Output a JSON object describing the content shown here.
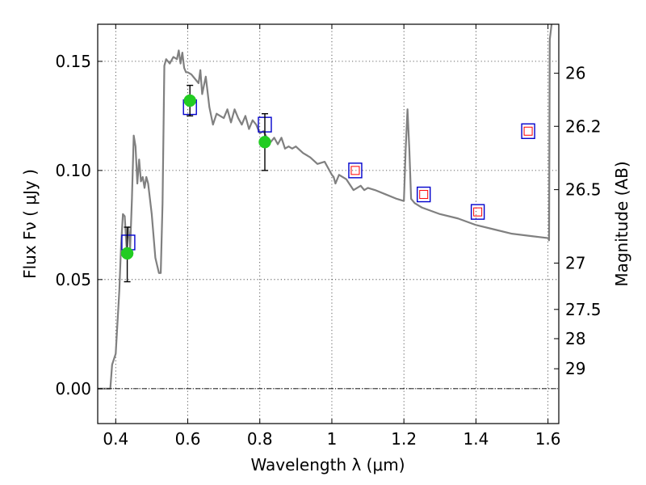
{
  "chart_data": {
    "type": "line",
    "title": "",
    "xlabel": "Wavelength  λ (μm)",
    "ylabel": "Flux  Fν  ( μJy )",
    "y2label": "Magnitude (AB)",
    "xlim": [
      0.35,
      1.63
    ],
    "ylim": [
      -0.016,
      0.167
    ],
    "grid": true,
    "x_ticks": [
      0.4,
      0.6,
      0.8,
      1.0,
      1.2,
      1.4,
      1.6
    ],
    "x_tick_labels": [
      "0.4",
      "0.6",
      "0.8",
      "1",
      "1.2",
      "1.4",
      "1.6"
    ],
    "y_ticks": [
      0.0,
      0.05,
      0.1,
      0.15
    ],
    "y_tick_labels": [
      "0.00",
      "0.05",
      "0.10",
      "0.15"
    ],
    "y2_ticks": [
      {
        "mag": 26,
        "label": "26"
      },
      {
        "mag": 26.2,
        "label": "26.2"
      },
      {
        "mag": 26.5,
        "label": "26.5"
      },
      {
        "mag": 27,
        "label": "27"
      },
      {
        "mag": 27.5,
        "label": "27.5"
      },
      {
        "mag": 28,
        "label": "28"
      },
      {
        "mag": 29,
        "label": "29"
      }
    ],
    "colors": {
      "sed": "#808080",
      "measured": "#22cc22",
      "model_box": "#0000cc",
      "upper_box": "#ff0000",
      "errorbar": "#000000"
    },
    "series": [
      {
        "kind": "sed_model",
        "x": [
          0.35,
          0.38,
          0.385,
          0.39,
          0.4,
          0.41,
          0.415,
          0.42,
          0.425,
          0.43,
          0.435,
          0.44,
          0.445,
          0.45,
          0.455,
          0.46,
          0.465,
          0.47,
          0.475,
          0.48,
          0.485,
          0.49,
          0.5,
          0.51,
          0.52,
          0.525,
          0.53,
          0.535,
          0.54,
          0.55,
          0.56,
          0.57,
          0.575,
          0.58,
          0.585,
          0.59,
          0.595,
          0.6,
          0.61,
          0.62,
          0.63,
          0.635,
          0.64,
          0.65,
          0.66,
          0.67,
          0.68,
          0.69,
          0.7,
          0.71,
          0.72,
          0.73,
          0.74,
          0.75,
          0.76,
          0.77,
          0.78,
          0.79,
          0.8,
          0.81,
          0.82,
          0.83,
          0.84,
          0.85,
          0.86,
          0.87,
          0.88,
          0.89,
          0.9,
          0.92,
          0.94,
          0.96,
          0.98,
          1.0,
          1.005,
          1.01,
          1.02,
          1.04,
          1.06,
          1.08,
          1.09,
          1.1,
          1.12,
          1.15,
          1.18,
          1.2,
          1.205,
          1.21,
          1.215,
          1.22,
          1.23,
          1.25,
          1.3,
          1.35,
          1.4,
          1.45,
          1.5,
          1.55,
          1.6,
          1.603,
          1.605,
          1.61
        ],
        "y": [
          0.0,
          0.0,
          0.0,
          0.011,
          0.016,
          0.045,
          0.066,
          0.08,
          0.079,
          0.065,
          0.074,
          0.064,
          0.087,
          0.116,
          0.111,
          0.094,
          0.105,
          0.095,
          0.097,
          0.092,
          0.097,
          0.094,
          0.08,
          0.06,
          0.053,
          0.053,
          0.085,
          0.148,
          0.151,
          0.149,
          0.152,
          0.151,
          0.155,
          0.149,
          0.154,
          0.147,
          0.145,
          0.145,
          0.144,
          0.142,
          0.14,
          0.146,
          0.135,
          0.143,
          0.129,
          0.121,
          0.126,
          0.125,
          0.124,
          0.128,
          0.122,
          0.128,
          0.124,
          0.121,
          0.125,
          0.119,
          0.123,
          0.121,
          0.117,
          0.118,
          0.115,
          0.113,
          0.115,
          0.112,
          0.115,
          0.11,
          0.111,
          0.11,
          0.111,
          0.108,
          0.106,
          0.103,
          0.104,
          0.098,
          0.097,
          0.094,
          0.098,
          0.096,
          0.091,
          0.093,
          0.091,
          0.092,
          0.091,
          0.089,
          0.087,
          0.086,
          0.11,
          0.128,
          0.11,
          0.087,
          0.085,
          0.083,
          0.08,
          0.078,
          0.075,
          0.073,
          0.071,
          0.07,
          0.069,
          0.068,
          0.16,
          0.167
        ]
      },
      {
        "kind": "measured_points",
        "name": "",
        "points": [
          {
            "x": 0.432,
            "y": 0.062,
            "err_lo": 0.049,
            "err_hi": 0.074
          },
          {
            "x": 0.606,
            "y": 0.132,
            "err_lo": 0.125,
            "err_hi": 0.139
          },
          {
            "x": 0.814,
            "y": 0.113,
            "err_lo": 0.1,
            "err_hi": 0.126
          }
        ]
      },
      {
        "kind": "model_boxes",
        "name": "",
        "points": [
          {
            "x": 0.435,
            "y": 0.067
          },
          {
            "x": 0.606,
            "y": 0.129
          },
          {
            "x": 0.814,
            "y": 0.121
          }
        ]
      },
      {
        "kind": "model_boxes_with_red",
        "name": "",
        "points": [
          {
            "x": 1.065,
            "y": 0.1
          },
          {
            "x": 1.255,
            "y": 0.089
          },
          {
            "x": 1.405,
            "y": 0.081
          },
          {
            "x": 1.545,
            "y": 0.118
          }
        ]
      }
    ]
  }
}
